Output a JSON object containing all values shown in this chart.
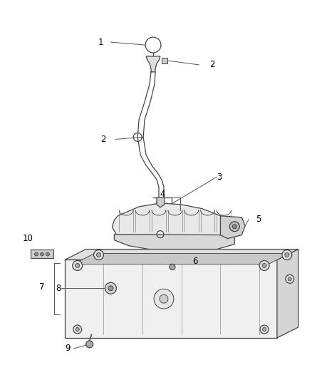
{
  "background_color": "#ffffff",
  "fig_width": 4.38,
  "fig_height": 5.33,
  "dpi": 100,
  "line_color": "#444444",
  "label_fontsize": 8.5
}
